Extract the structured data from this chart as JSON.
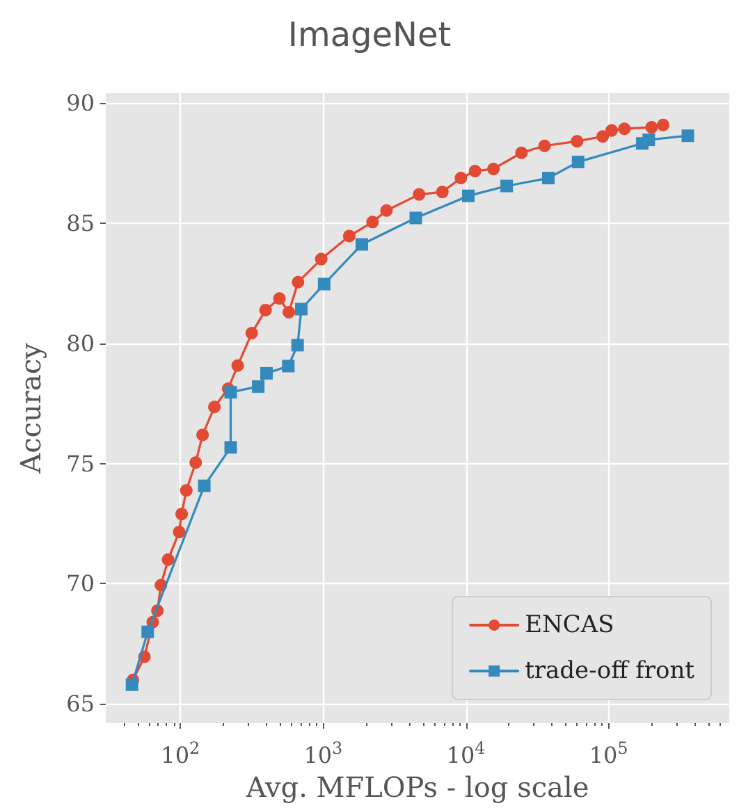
{
  "chart_data": {
    "type": "line",
    "title": "ImageNet",
    "xlabel": "Avg. MFLOPs - log scale",
    "ylabel": "Accuracy",
    "log": "x",
    "grid": true,
    "legend": "bottom right",
    "line_style": "solid",
    "xlim": [
      30,
      700000
    ],
    "ylim": [
      64.2,
      90.4
    ],
    "xticks": [
      {
        "value": 100,
        "label": "10$^{2}$"
      },
      {
        "value": 1000,
        "label": "10$^{3}$"
      },
      {
        "value": 10000,
        "label": "10$^{4}$"
      },
      {
        "value": 100000,
        "label": "10$^{5}$"
      }
    ],
    "yticks": [
      65,
      70,
      75,
      80,
      85,
      90
    ],
    "series": [
      {
        "name": "ENCAS",
        "color": "#e24a33",
        "marker": "circle",
        "x": [
          46.5,
          56,
          64,
          69,
          73,
          82,
          98,
          102,
          110,
          128,
          143,
          173,
          216,
          252,
          316,
          395,
          494,
          575,
          667,
          970,
          1524,
          2218,
          2780,
          4700,
          6840,
          9230,
          11600,
          15600,
          24500,
          35600,
          60100,
          90800,
          105000,
          129000,
          200000,
          241000
        ],
        "values": [
          66.0,
          66.96,
          68.4,
          68.88,
          69.94,
          71.0,
          72.15,
          72.9,
          73.88,
          75.04,
          76.19,
          77.35,
          78.11,
          79.07,
          80.42,
          81.38,
          81.86,
          81.29,
          82.54,
          83.5,
          84.46,
          85.04,
          85.52,
          86.19,
          86.29,
          86.87,
          87.16,
          87.25,
          87.92,
          88.21,
          88.4,
          88.6,
          88.85,
          88.92,
          88.98,
          89.08
        ]
      },
      {
        "name": "trade-off front",
        "color": "#348abd",
        "marker": "square",
        "x": [
          45.8,
          59,
          147,
          225,
          225,
          351,
          401,
          570,
          662,
          703,
          1016,
          1866,
          4455,
          10400,
          19300,
          37800,
          61100,
          172000,
          191000,
          359000
        ],
        "values": [
          65.8,
          68.0,
          74.07,
          75.67,
          77.96,
          78.2,
          78.75,
          79.05,
          79.92,
          81.42,
          82.46,
          84.11,
          85.21,
          86.13,
          86.54,
          86.87,
          87.54,
          88.31,
          88.46,
          88.63
        ]
      }
    ]
  }
}
